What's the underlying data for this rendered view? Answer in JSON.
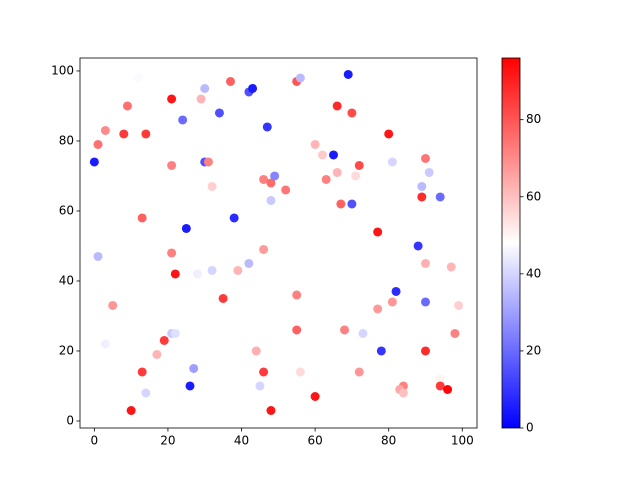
{
  "chart_data": {
    "type": "scatter",
    "x": [
      0,
      1,
      3,
      1,
      3,
      5,
      8,
      9,
      14,
      12,
      13,
      13,
      10,
      14,
      17,
      19,
      21,
      22,
      21,
      21,
      21,
      22,
      24,
      25,
      26,
      27,
      28,
      29,
      30,
      30,
      31,
      32,
      32,
      34,
      35,
      37,
      38,
      39,
      42,
      43,
      42,
      44,
      45,
      46,
      46,
      46,
      47,
      48,
      49,
      48,
      48,
      52,
      55,
      56,
      55,
      55,
      56,
      60,
      60,
      62,
      63,
      65,
      66,
      66,
      67,
      69,
      70,
      70,
      71,
      72,
      68,
      73,
      72,
      77,
      77,
      78,
      80,
      81,
      81,
      82,
      84,
      83,
      84,
      88,
      89,
      89,
      90,
      91,
      90,
      90,
      90,
      94,
      94,
      94,
      96,
      97,
      98,
      99
    ],
    "y": [
      74,
      79,
      83,
      47,
      22,
      33,
      82,
      90,
      82,
      98,
      58,
      14,
      3,
      8,
      19,
      23,
      25,
      25,
      92,
      73,
      48,
      42,
      86,
      55,
      10,
      15,
      42,
      92,
      95,
      74,
      74,
      67,
      43,
      88,
      35,
      97,
      58,
      43,
      94,
      95,
      45,
      20,
      10,
      69,
      49,
      14,
      84,
      68,
      70,
      63,
      3,
      66,
      97,
      98,
      36,
      26,
      14,
      7,
      79,
      76,
      69,
      76,
      90,
      71,
      62,
      99,
      88,
      62,
      70,
      73,
      26,
      25,
      14,
      54,
      32,
      20,
      82,
      74,
      34,
      37,
      10,
      9,
      8,
      50,
      67,
      64,
      75,
      71,
      45,
      34,
      20,
      64,
      12,
      10,
      9,
      44,
      25,
      33
    ],
    "c": [
      5,
      75,
      70,
      35,
      45,
      68,
      85,
      75,
      85,
      47,
      78,
      85,
      92,
      40,
      62,
      85,
      38,
      42,
      92,
      72,
      72,
      92,
      20,
      5,
      5,
      30,
      45,
      62,
      35,
      15,
      72,
      57,
      40,
      15,
      85,
      78,
      8,
      62,
      15,
      5,
      35,
      63,
      40,
      72,
      67,
      85,
      10,
      76,
      25,
      38,
      92,
      74,
      80,
      35,
      72,
      78,
      55,
      92,
      62,
      58,
      72,
      5,
      88,
      62,
      78,
      5,
      82,
      15,
      55,
      82,
      72,
      40,
      68,
      92,
      67,
      10,
      92,
      40,
      68,
      8,
      72,
      65,
      60,
      10,
      35,
      88,
      74,
      38,
      63,
      20,
      88,
      20,
      50,
      85,
      95,
      62,
      72,
      57
    ],
    "xlim": [
      -3.9,
      104
    ],
    "ylim": [
      -2,
      103.7
    ],
    "xticks": [
      0,
      20,
      40,
      60,
      80,
      100
    ],
    "yticks": [
      0,
      20,
      40,
      60,
      80,
      100
    ],
    "colorbar": {
      "lim": [
        0,
        96
      ],
      "ticks": [
        0,
        20,
        40,
        60,
        80
      ],
      "colors": [
        "#0000ff",
        "#ffffff",
        "#ff0000"
      ]
    }
  }
}
